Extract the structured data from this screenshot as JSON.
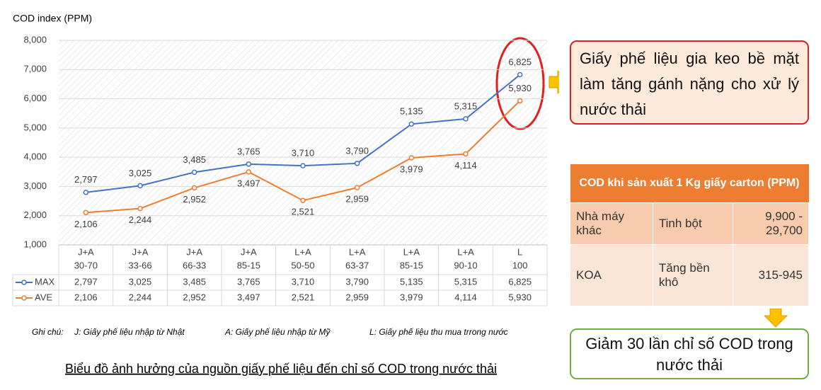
{
  "chart_data": {
    "type": "line",
    "y_axis_title": "COD index (PPM)",
    "categories": [
      [
        "J+A",
        "30-70"
      ],
      [
        "J+A",
        "33-66"
      ],
      [
        "J+A",
        "66-33"
      ],
      [
        "J+A",
        "85-15"
      ],
      [
        "L+A",
        "50-50"
      ],
      [
        "L+A",
        "63-37"
      ],
      [
        "L+A",
        "85-15"
      ],
      [
        "L+A",
        "90-10"
      ],
      [
        "L",
        "100"
      ]
    ],
    "series": [
      {
        "name": "MAX",
        "color": "#4472c4",
        "values": [
          2797,
          3025,
          3485,
          3765,
          3710,
          3790,
          5135,
          5315,
          6825
        ],
        "value_labels": [
          "2,797",
          "3,025",
          "3,485",
          "3,765",
          "3,710",
          "3,790",
          "5,135",
          "5,315",
          "6,825"
        ]
      },
      {
        "name": "AVE",
        "color": "#ed7d31",
        "values": [
          2106,
          2244,
          2952,
          3497,
          2521,
          2959,
          3979,
          4114,
          5930
        ],
        "value_labels": [
          "2,106",
          "2,244",
          "2,952",
          "3,497",
          "2,521",
          "2,959",
          "3,979",
          "4,114",
          "5,930"
        ]
      }
    ],
    "ylim": [
      1000,
      8000
    ],
    "yticks": [
      {
        "value": 1000,
        "label": "1,000"
      },
      {
        "value": 2000,
        "label": "2,000"
      },
      {
        "value": 3000,
        "label": "3,000"
      },
      {
        "value": 4000,
        "label": "4,000"
      },
      {
        "value": 5000,
        "label": "5,000"
      },
      {
        "value": 6000,
        "label": "6,000"
      },
      {
        "value": 7000,
        "label": "7,000"
      },
      {
        "value": 8000,
        "label": "8,000"
      }
    ],
    "grid": true,
    "notes": [
      "Ghi chú:",
      "J: Giấy phế liệu nhập từ Nhật",
      "A: Giấy phế liệu nhập từ Mỹ",
      "L: Giấy phế liệu thu mua trrong nước"
    ],
    "caption": "Biểu đồ ảnh hưởng của nguồn giấy phế liệu đến chỉ số COD trong nước thải"
  },
  "callout_top": "Giấy phế liệu gia keo bề mặt làm tăng gánh nặng cho xử lý nước thải",
  "table": {
    "header": "COD khi sản xuất 1 Kg giấy carton (PPM)",
    "rows": [
      [
        "Nhà máy khác",
        "Tinh bột",
        "9,900 - 29,700"
      ],
      [
        "KOA",
        "Tăng bền khô",
        "315-945"
      ]
    ]
  },
  "callout_bottom": "Giảm 30 lần chỉ số COD trong nước thải"
}
